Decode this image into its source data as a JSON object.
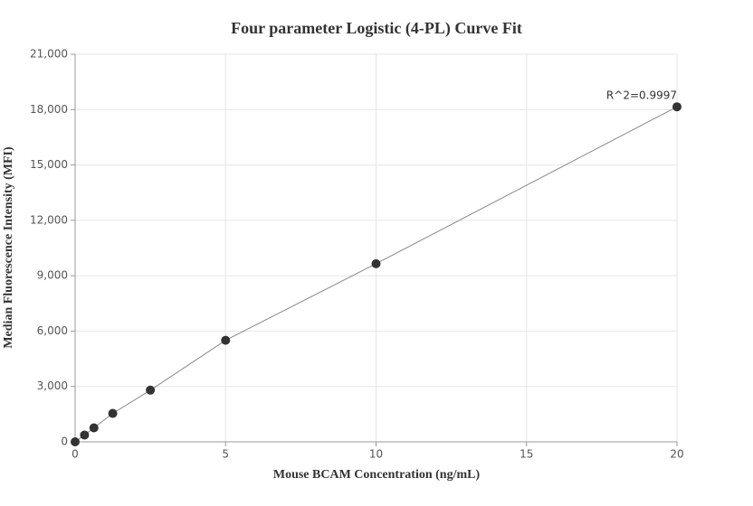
{
  "chart_data": {
    "type": "scatter",
    "title": "Four parameter Logistic (4-PL) Curve Fit",
    "x_label": "Mouse BCAM Concentration (ng/mL)",
    "y_label": "Median Fluorescence Intensity (MFI)",
    "annotation": "R^2=0.9997",
    "x": [
      0,
      0.3125,
      0.625,
      1.25,
      2.5,
      5,
      10,
      20
    ],
    "values": [
      0,
      370,
      760,
      1540,
      2800,
      5500,
      9650,
      18150
    ],
    "color": "#333333",
    "line_color": "#888888",
    "xlim": [
      0,
      20
    ],
    "xticks": [
      0,
      5,
      10,
      15,
      20
    ],
    "ylim": [
      0,
      21000
    ],
    "yticks": [
      0,
      {
        "value": 3000,
        "label": "3,000"
      },
      {
        "value": 6000,
        "label": "6,000"
      },
      {
        "value": 9000,
        "label": "9,000"
      },
      {
        "value": 12000,
        "label": "12,000"
      },
      {
        "value": 15000,
        "label": "15,000"
      },
      {
        "value": 18000,
        "label": "18,000"
      },
      {
        "value": 21000,
        "label": "21,000"
      }
    ],
    "grid": true
  }
}
